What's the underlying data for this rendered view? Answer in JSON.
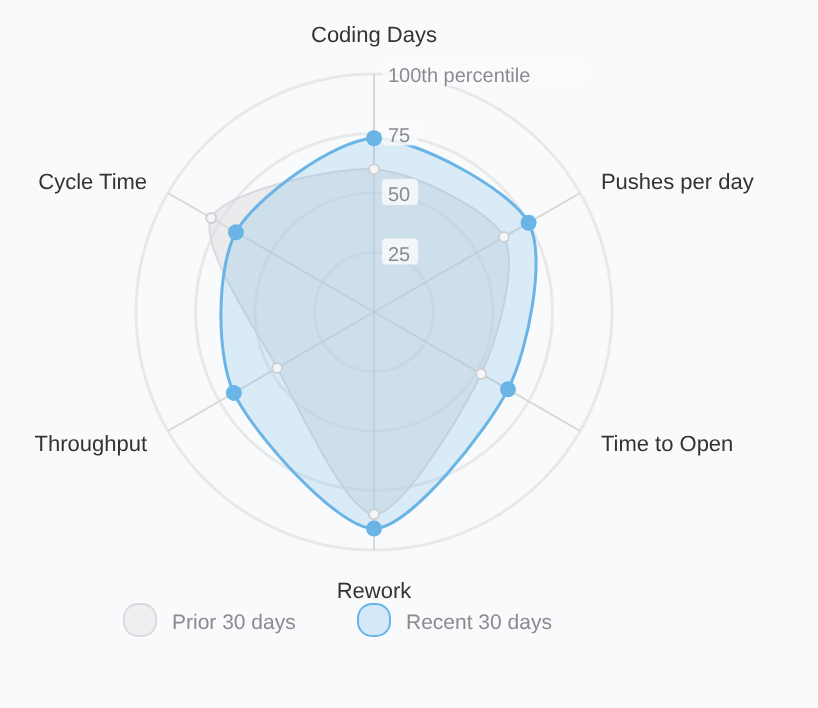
{
  "chart_data": {
    "type": "radar",
    "categories": [
      "Coding Days",
      "Pushes per day",
      "Time to Open",
      "Rework",
      "Throughput",
      "Cycle Time"
    ],
    "series": [
      {
        "name": "Prior 30 days",
        "color": "#d9dadd",
        "values": [
          60,
          63,
          52,
          85,
          47,
          79
        ]
      },
      {
        "name": "Recent 30 days",
        "color": "#6ab4e6",
        "values": [
          73,
          75,
          65,
          91,
          68,
          67
        ]
      }
    ],
    "ylim": [
      0,
      100
    ],
    "yticks": [
      25,
      50,
      75,
      {
        "value": 100,
        "label": "100th percentile"
      }
    ],
    "grid": true,
    "legend": "bottom",
    "marker": "circle",
    "line_style": "solid"
  }
}
